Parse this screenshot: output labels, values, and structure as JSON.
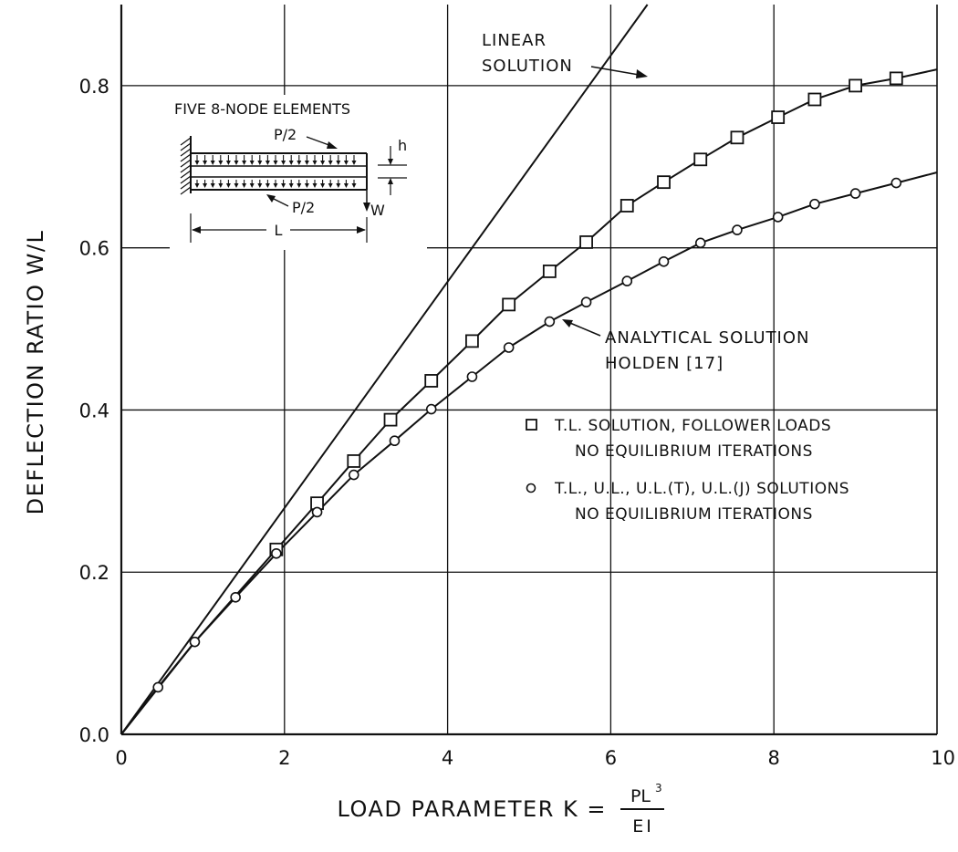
{
  "chart_data": {
    "type": "line",
    "xlabel": "LOAD PARAMETER K =",
    "xlabel_formula": {
      "numerator": "PL",
      "exponent": "3",
      "denominator": "EI"
    },
    "ylabel": "DEFLECTION RATIO W/L",
    "xlim": [
      0,
      10
    ],
    "ylim": [
      0,
      0.9
    ],
    "x_ticks": [
      "0",
      "2",
      "4",
      "6",
      "8",
      "10"
    ],
    "y_ticks": [
      "0.0",
      "0.2",
      "0.4",
      "0.6",
      "0.8"
    ],
    "grid": true,
    "series": [
      {
        "marker": "none",
        "x": [
          0,
          6.45
        ],
        "y": [
          0,
          0.9
        ]
      },
      {
        "marker": "none",
        "x": [
          0,
          0.45,
          0.9,
          1.4,
          1.9,
          2.4,
          2.85,
          3.35,
          3.8,
          4.3,
          4.75,
          5.25,
          5.7,
          6.2,
          6.65,
          7.1,
          7.55,
          8.05,
          8.5,
          9.0,
          9.5,
          10.0
        ],
        "y": [
          0,
          0.058,
          0.114,
          0.169,
          0.223,
          0.274,
          0.32,
          0.362,
          0.401,
          0.441,
          0.477,
          0.509,
          0.533,
          0.559,
          0.583,
          0.606,
          0.622,
          0.638,
          0.654,
          0.667,
          0.68,
          0.693
        ]
      },
      {
        "name": "T.L. SOLUTION, FOLLOWER LOADS NO EQUILIBRIUM ITERATIONS",
        "marker": "square",
        "x": [
          1.9,
          2.4,
          2.85,
          3.3,
          3.8,
          4.3,
          4.75,
          5.25,
          5.7,
          6.2,
          6.65,
          7.1,
          7.55,
          8.05,
          8.5,
          9.0,
          9.5
        ],
        "y": [
          0.228,
          0.285,
          0.337,
          0.388,
          0.436,
          0.485,
          0.53,
          0.571,
          0.607,
          0.652,
          0.681,
          0.709,
          0.736,
          0.761,
          0.783,
          0.8,
          0.809
        ]
      },
      {
        "name": "T.L., U.L., U.L.(T), U.L.(J) SOLUTIONS NO EQUILIBRIUM ITERATIONS",
        "marker": "circle",
        "x": [
          0.45,
          0.9,
          1.4,
          1.9,
          2.4,
          2.85,
          3.35,
          3.8,
          4.3,
          4.75,
          5.25,
          5.7,
          6.2,
          6.65,
          7.1,
          7.55,
          8.05,
          8.5,
          9.0,
          9.5
        ],
        "y": [
          0.058,
          0.114,
          0.169,
          0.223,
          0.274,
          0.32,
          0.362,
          0.401,
          0.441,
          0.477,
          0.509,
          0.533,
          0.559,
          0.583,
          0.606,
          0.622,
          0.638,
          0.654,
          0.667,
          0.68
        ]
      }
    ],
    "upper_curve_extension": {
      "x": [
        9.5,
        10.0
      ],
      "y": [
        0.809,
        0.82
      ]
    },
    "annotations": {
      "linear": [
        "LINEAR",
        "SOLUTION"
      ],
      "analytical": [
        "ANALYTICAL SOLUTION",
        "HOLDEN [17]"
      ]
    },
    "legend": {
      "square": [
        "T.L. SOLUTION, FOLLOWER LOADS",
        "NO EQUILIBRIUM ITERATIONS"
      ],
      "circle": [
        "T.L., U.L., U.L.(T), U.L.(J) SOLUTIONS",
        "NO EQUILIBRIUM ITERATIONS"
      ]
    },
    "inset": {
      "title": "FIVE 8-NODE ELEMENTS",
      "load_top": "P/2",
      "load_bottom": "P/2",
      "thickness": "h",
      "deflection": "W",
      "length": "L"
    }
  }
}
